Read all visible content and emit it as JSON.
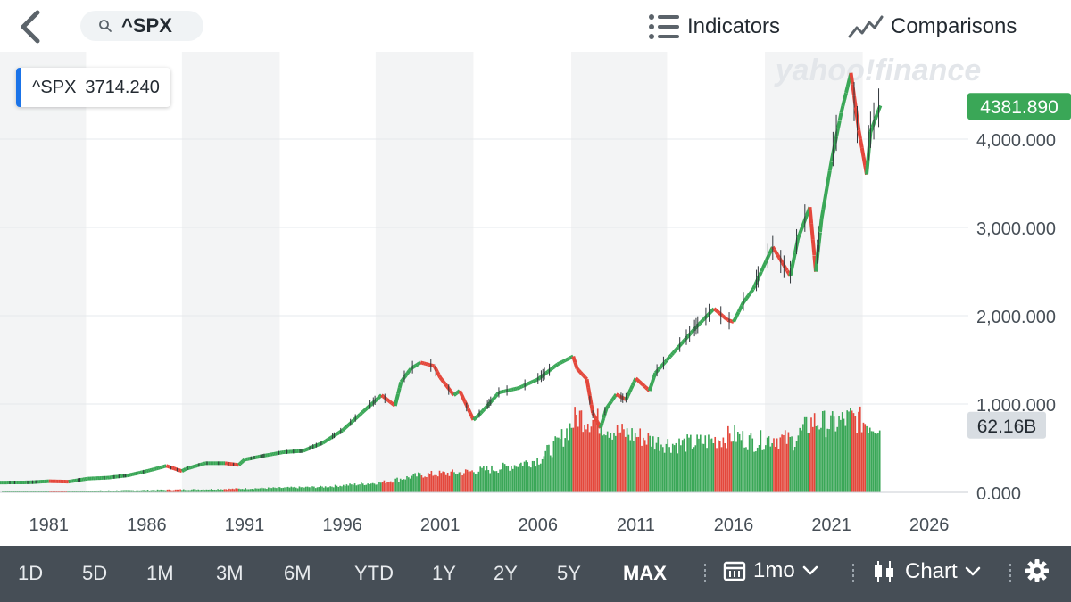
{
  "header": {
    "symbol": "^SPX",
    "indicators_label": "Indicators",
    "comparisons_label": "Comparisons"
  },
  "tooltip": {
    "symbol": "^SPX",
    "value": "3714.240"
  },
  "watermark": "yahoo!finance",
  "last_price_badge": "4381.890",
  "volume_badge": "62.16B",
  "colors": {
    "up": "#3aa757",
    "down": "#e4473b",
    "accent": "#1a73e8",
    "badge_green": "#3aa757",
    "badge_grey": "#d8dde2",
    "shade": "#f3f4f5"
  },
  "range_buttons": [
    "1D",
    "5D",
    "1M",
    "3M",
    "6M",
    "YTD",
    "1Y",
    "2Y",
    "5Y",
    "MAX"
  ],
  "active_range": "MAX",
  "interval_label": "1mo",
  "chart_type_label": "Chart",
  "chart_data": {
    "type": "line",
    "title": "",
    "xlabel": "",
    "ylabel": "",
    "x_ticks": [
      "1981",
      "1986",
      "1991",
      "1996",
      "2001",
      "2006",
      "2011",
      "2016",
      "2021",
      "2026"
    ],
    "y_ticks": [
      "0.000",
      "1,000.000",
      "2,000.000",
      "3,000.000",
      "4,000.000"
    ],
    "xlim": [
      1978.5,
      2028
    ],
    "ylim": [
      0,
      4800
    ],
    "shaded_bands": [
      [
        1978.5,
        1982.9
      ],
      [
        1987.8,
        1992.8
      ],
      [
        1997.7,
        2002.7
      ],
      [
        2007.7,
        2012.6
      ],
      [
        2017.6,
        2022.6
      ]
    ],
    "series": [
      {
        "values": [
          [
            1978.5,
            110
          ],
          [
            1980,
            112
          ],
          [
            1981,
            125
          ],
          [
            1982,
            120
          ],
          [
            1983,
            155
          ],
          [
            1984,
            165
          ],
          [
            1985,
            190
          ],
          [
            1986,
            240
          ],
          [
            1987,
            300
          ],
          [
            1987.8,
            240
          ],
          [
            1988,
            265
          ],
          [
            1989,
            330
          ],
          [
            1990,
            330
          ],
          [
            1990.7,
            310
          ],
          [
            1991,
            370
          ],
          [
            1992,
            415
          ],
          [
            1993,
            455
          ],
          [
            1994,
            470
          ],
          [
            1995,
            560
          ],
          [
            1996,
            700
          ],
          [
            1997,
            900
          ],
          [
            1998,
            1100
          ],
          [
            1998.7,
            980
          ],
          [
            1999,
            1250
          ],
          [
            1999.5,
            1400
          ],
          [
            2000,
            1470
          ],
          [
            2000.7,
            1430
          ],
          [
            2001,
            1300
          ],
          [
            2001.7,
            1100
          ],
          [
            2002,
            1150
          ],
          [
            2002.7,
            820
          ],
          [
            2003,
            880
          ],
          [
            2003.5,
            1000
          ],
          [
            2004,
            1130
          ],
          [
            2005,
            1180
          ],
          [
            2006,
            1280
          ],
          [
            2007,
            1450
          ],
          [
            2007.8,
            1540
          ],
          [
            2008,
            1400
          ],
          [
            2008.5,
            1280
          ],
          [
            2008.8,
            900
          ],
          [
            2009.2,
            730
          ],
          [
            2009.5,
            950
          ],
          [
            2010,
            1110
          ],
          [
            2010.5,
            1050
          ],
          [
            2011,
            1290
          ],
          [
            2011.7,
            1150
          ],
          [
            2012,
            1350
          ],
          [
            2013,
            1600
          ],
          [
            2014,
            1850
          ],
          [
            2015,
            2080
          ],
          [
            2015.7,
            1950
          ],
          [
            2016,
            1930
          ],
          [
            2016.5,
            2150
          ],
          [
            2017,
            2300
          ],
          [
            2018,
            2780
          ],
          [
            2018.9,
            2450
          ],
          [
            2019.3,
            2880
          ],
          [
            2019.9,
            3230
          ],
          [
            2020.2,
            2500
          ],
          [
            2020.5,
            3100
          ],
          [
            2021,
            3750
          ],
          [
            2021.5,
            4300
          ],
          [
            2022,
            4750
          ],
          [
            2022.4,
            4100
          ],
          [
            2022.8,
            3600
          ],
          [
            2023,
            4080
          ],
          [
            2023.5,
            4381.89
          ]
        ]
      }
    ],
    "volume": {
      "ylim": [
        0,
        75000000000
      ],
      "last": 62160000000,
      "values": [
        [
          1980,
          1000000000
        ],
        [
          1985,
          1800000000
        ],
        [
          1990,
          3000000000
        ],
        [
          1995,
          5000000000
        ],
        [
          1998,
          9000000000
        ],
        [
          2000,
          16000000000
        ],
        [
          2002,
          18000000000
        ],
        [
          2004,
          22000000000
        ],
        [
          2006,
          30000000000
        ],
        [
          2007,
          45000000000
        ],
        [
          2008,
          70000000000
        ],
        [
          2009,
          65000000000
        ],
        [
          2010,
          55000000000
        ],
        [
          2011,
          52000000000
        ],
        [
          2012,
          46000000000
        ],
        [
          2013,
          44000000000
        ],
        [
          2014,
          45000000000
        ],
        [
          2015,
          48000000000
        ],
        [
          2016,
          52000000000
        ],
        [
          2017,
          46000000000
        ],
        [
          2018,
          50000000000
        ],
        [
          2019,
          47000000000
        ],
        [
          2020,
          65000000000
        ],
        [
          2021,
          62000000000
        ],
        [
          2022,
          68000000000
        ],
        [
          2023,
          62160000000
        ]
      ]
    }
  }
}
